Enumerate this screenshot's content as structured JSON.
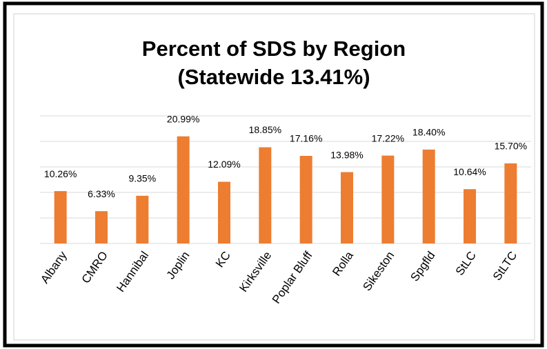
{
  "chart_data": {
    "type": "bar",
    "title": "Percent of SDS by Region",
    "subtitle": "(Statewide 13.41%)",
    "categories": [
      "Albany",
      "CMRO",
      "Hannibal",
      "Joplin",
      "KC",
      "Kirksville",
      "Poplar Bluff",
      "Rolla",
      "Sikeston",
      "Spgfld",
      "StLC",
      "StLTC"
    ],
    "values": [
      10.26,
      6.33,
      9.35,
      20.99,
      12.09,
      18.85,
      17.16,
      13.98,
      17.22,
      18.4,
      10.64,
      15.7
    ],
    "value_labels": [
      "10.26%",
      "6.33%",
      "9.35%",
      "20.99%",
      "12.09%",
      "18.85%",
      "17.16%",
      "13.98%",
      "17.22%",
      "18.40%",
      "10.64%",
      "15.70%"
    ],
    "color": "#ed7d31",
    "ylim": [
      0,
      25
    ],
    "yticks": [
      0,
      5,
      10,
      15,
      20,
      25
    ],
    "grid": true
  }
}
